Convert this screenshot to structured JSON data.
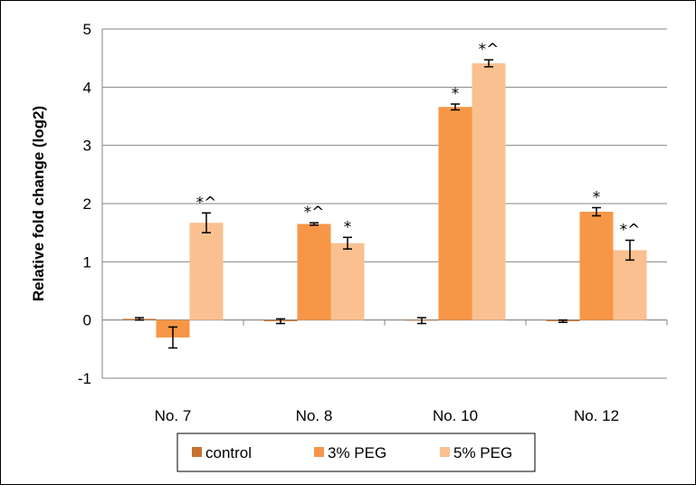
{
  "chart_data": {
    "type": "bar",
    "title": "",
    "xlabel": "",
    "ylabel": "Relative fold change (log2)",
    "ylim": [
      -1,
      5
    ],
    "yticks": [
      -1,
      0,
      1,
      2,
      3,
      4,
      5
    ],
    "grid": true,
    "legend_position": "bottom",
    "categories": [
      "No. 7",
      "No. 8",
      "No. 10",
      "No. 12"
    ],
    "series": [
      {
        "name": "control",
        "color": "#c8722f",
        "values": [
          0.02,
          -0.02,
          -0.01,
          -0.02
        ],
        "errors": [
          0.02,
          0.04,
          0.05,
          0.02
        ],
        "annotations": [
          "",
          "",
          "",
          ""
        ]
      },
      {
        "name": "3% PEG",
        "color": "#f79646",
        "values": [
          -0.3,
          1.65,
          3.66,
          1.86
        ],
        "errors": [
          0.18,
          0.02,
          0.05,
          0.07
        ],
        "annotations": [
          "",
          "*^",
          "*",
          "*"
        ]
      },
      {
        "name": "5% PEG",
        "color": "#fac08f",
        "values": [
          1.67,
          1.32,
          4.41,
          1.2
        ],
        "errors": [
          0.17,
          0.1,
          0.06,
          0.17
        ],
        "annotations": [
          "*^",
          "*",
          "*^",
          "*^"
        ]
      }
    ]
  }
}
